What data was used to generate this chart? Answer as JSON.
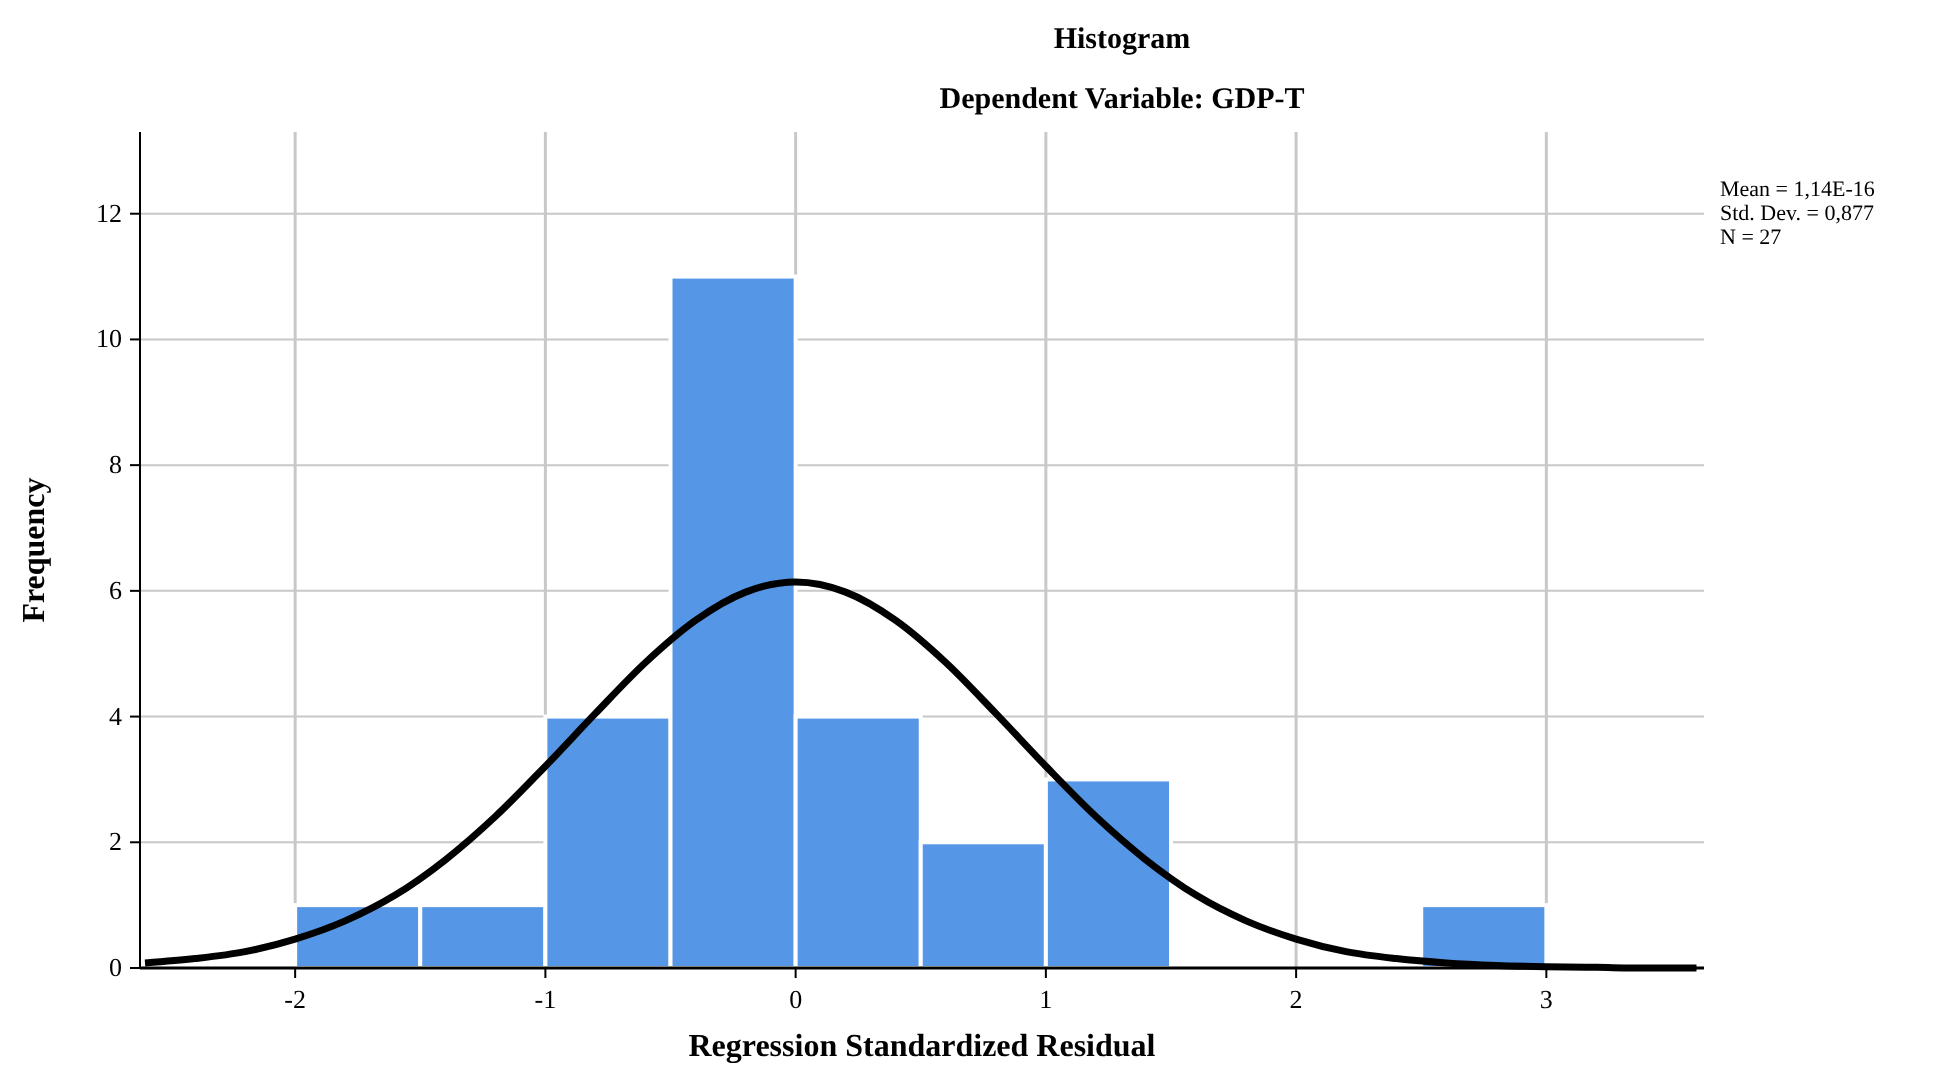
{
  "chart_data": {
    "type": "histogram",
    "title": "Histogram",
    "subtitle": "Dependent Variable: GDP-T",
    "xlabel": "Regression Standardized Residual",
    "ylabel": "Frequency",
    "bins": [
      -2,
      -1.5,
      -1,
      -0.5,
      0,
      0.5,
      1,
      1.5,
      2,
      2.5,
      3
    ],
    "values": [
      1,
      1,
      4,
      11,
      4,
      2,
      3,
      0,
      0,
      1
    ],
    "color": "#5596e6",
    "series": [
      {
        "type": "line",
        "color": "#000000",
        "x": [
          -2.6,
          -2.4,
          -2.2,
          -2,
          -1.8,
          -1.6,
          -1.4,
          -1.2,
          -1,
          -0.8,
          -0.6,
          -0.4,
          -0.2,
          0,
          0.2,
          0.4,
          0.6,
          0.8,
          1,
          1.2,
          1.4,
          1.6,
          1.8,
          2,
          2.2,
          2.4,
          2.6,
          2.8,
          3,
          3.2,
          3.4,
          3.6
        ],
        "values": [
          0.08,
          0.15,
          0.26,
          0.46,
          0.75,
          1.16,
          1.72,
          2.41,
          3.21,
          4.05,
          4.86,
          5.53,
          5.98,
          6.14,
          5.98,
          5.53,
          4.86,
          4.05,
          3.21,
          2.41,
          1.72,
          1.16,
          0.75,
          0.46,
          0.26,
          0.15,
          0.08,
          0.04,
          0.02,
          0.01,
          0,
          0
        ]
      }
    ],
    "xlim": [
      -2.62,
      3.63
    ],
    "xticks": [
      -2,
      -1,
      0,
      1,
      2,
      3
    ],
    "ylim": [
      0,
      13.3
    ],
    "yticks": [
      0,
      2,
      4,
      6,
      8,
      10,
      12
    ],
    "grid": true,
    "marker": "none",
    "annotations": [
      "Mean = 1,14E-16",
      "Std. Dev. = 0,877",
      "N = 27"
    ]
  }
}
